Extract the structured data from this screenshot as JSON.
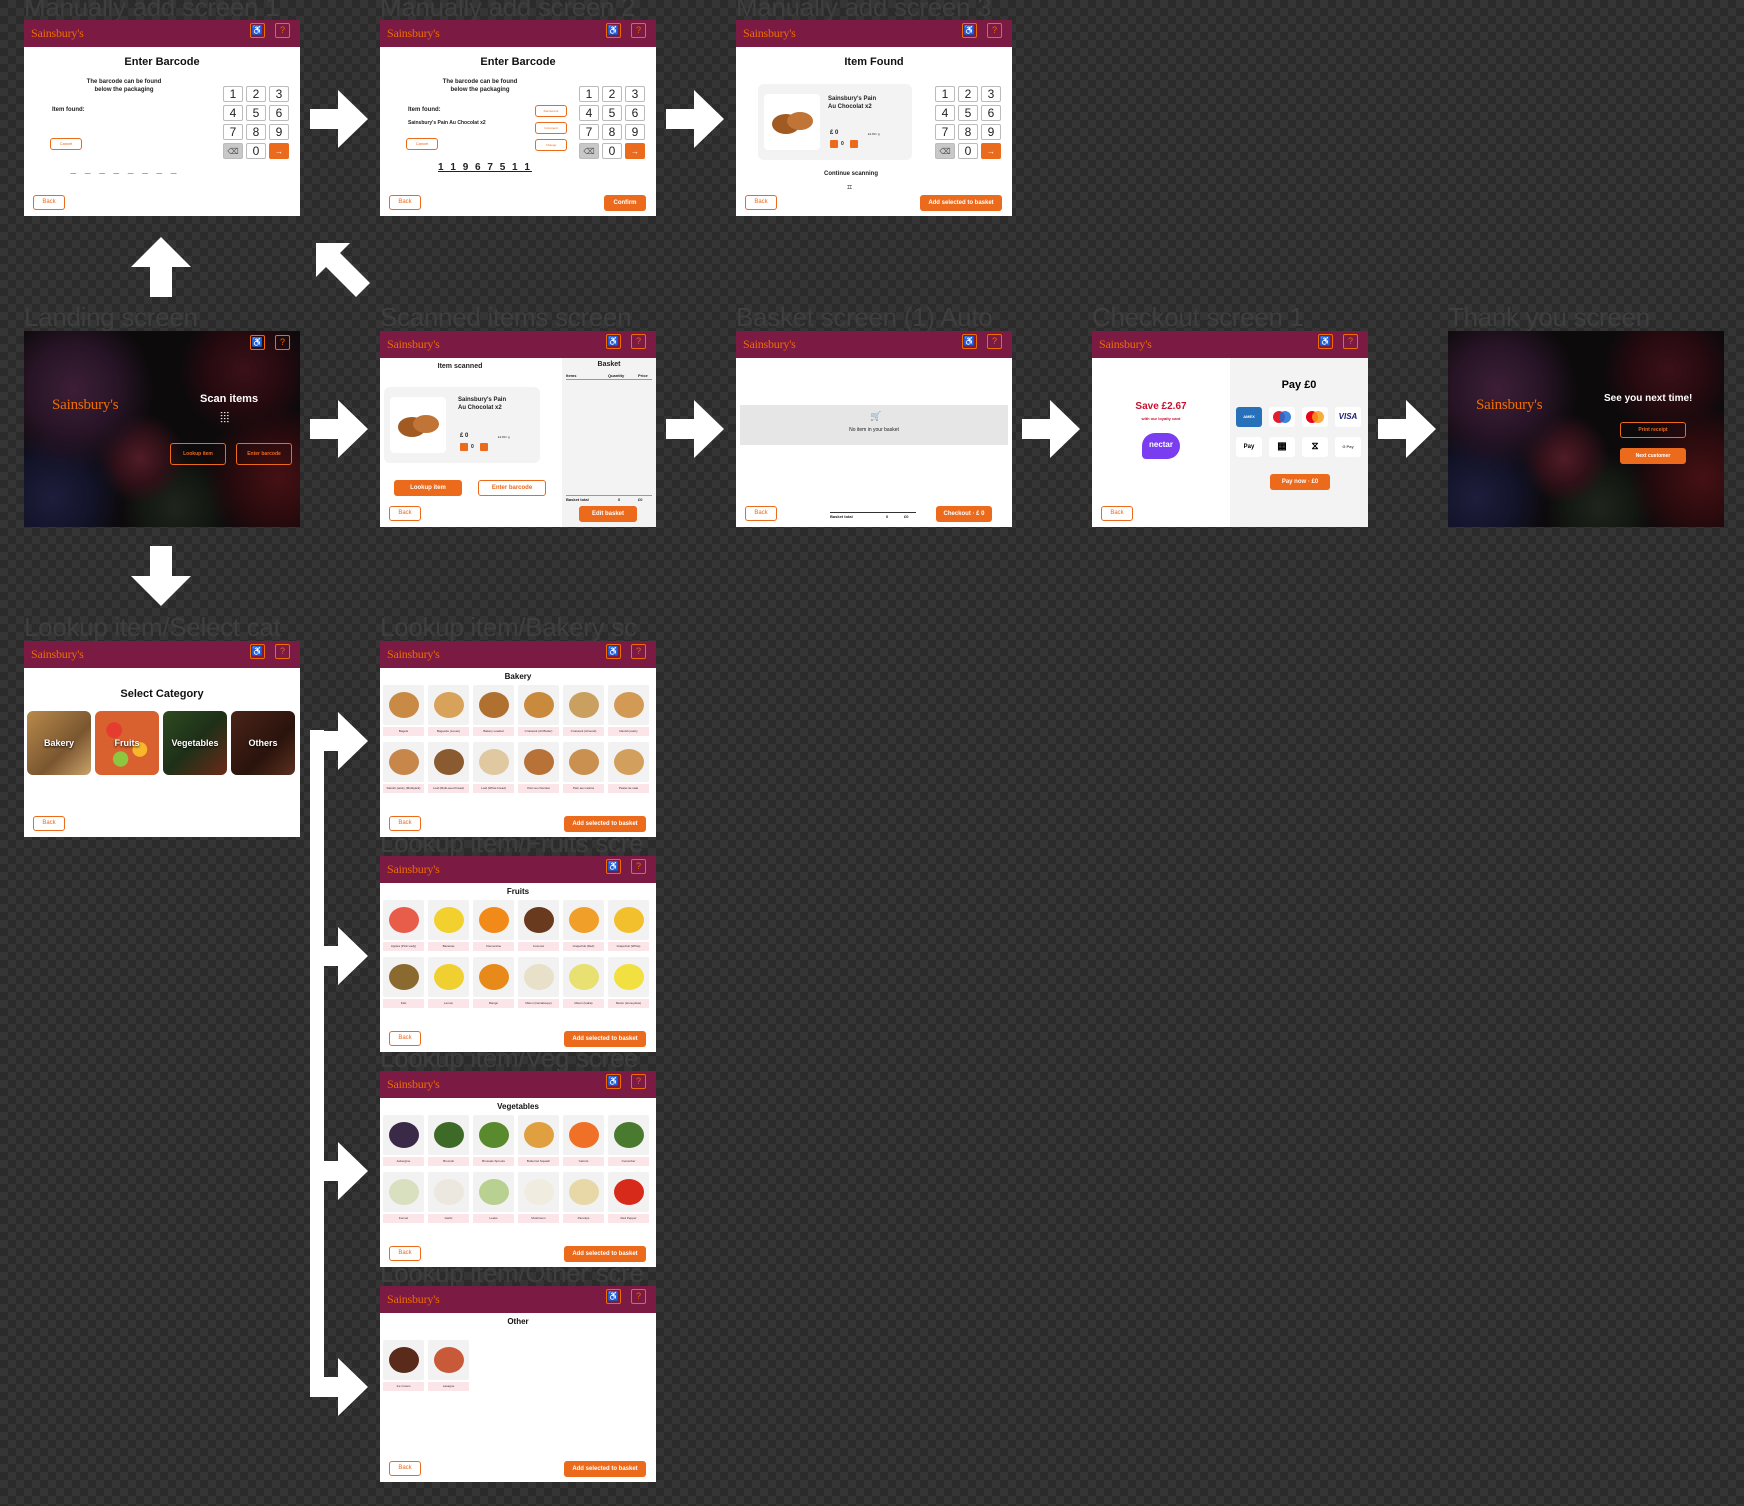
{
  "brand": {
    "logo": "Sainsbury's",
    "accessibility_label": "Accessibility",
    "support_label": "Request help",
    "accent": "#ec6a1c",
    "header_color": "#7b1a42"
  },
  "common": {
    "back": "Back",
    "add_selected": "Add selected to basket"
  },
  "titles": {
    "manual1": "Manually add screen 1",
    "manual2": "Manually add screen 2",
    "manual3": "Manually add screen 3",
    "landing": "Landing screen",
    "scanned": "Scanned items screen",
    "basket": "Basket screen (1) Auto",
    "checkout": "Checkout screen 1",
    "thankyou": "Thank you screen",
    "select_cat": "Lookup item/Select cat",
    "bakery": "Lookup item/Bakery sc",
    "fruits": "Lookup item/Fruits scre",
    "veg": "Lookup item/Veg scree",
    "other": "Lookup item/Other scre"
  },
  "manual1": {
    "title": "Enter Barcode",
    "hint1": "The barcode can be found",
    "hint2": "below the packaging",
    "found_label": "Item found:",
    "cancel": "Cancel",
    "digits": "_ _ _ _ _ _ _ _"
  },
  "manual2": {
    "title": "Enter Barcode",
    "hint1": "The barcode can be found",
    "hint2": "below the packaging",
    "found_label": "Item found:",
    "item": "Sainsbury's Pain Au Chocolat x2",
    "cancel": "Cancel",
    "side1": "Decrement",
    "side2": "Increment",
    "side3": "Change",
    "digits": "1 1 9 6 7 5 1 1",
    "confirm": "Confirm"
  },
  "manual3": {
    "title": "Item Found",
    "item1": "Sainsbury's Pain",
    "item2": "Au Chocolat x2",
    "price": "£ 0",
    "unit": "£1.80 / g",
    "qty": "0",
    "continue": "Continue scanning"
  },
  "keypad": [
    "1",
    "2",
    "3",
    "4",
    "5",
    "6",
    "7",
    "8",
    "9",
    "⌫",
    "0",
    "→"
  ],
  "landing": {
    "scan": "Scan items",
    "lookup": "Lookup item",
    "barcode": "Enter barcode"
  },
  "scanned": {
    "title": "Item scanned",
    "basket": "Basket",
    "col_items": "Items",
    "col_qty": "Quantity",
    "col_price": "Price",
    "item1": "Sainsbury's Pain",
    "item2": "Au Chocolat x2",
    "price": "£ 0",
    "unit": "£1.80 / g",
    "qty": "0",
    "lookup": "Lookup item",
    "barcode": "Enter barcode",
    "total_label": "Basket total",
    "total_qty": "0",
    "total_price": "£0",
    "edit": "Edit basket"
  },
  "basket": {
    "empty": "No item in your basket",
    "total_label": "Basket total",
    "total_qty": "0",
    "total_price": "£0",
    "checkout": "Checkout · £ 0"
  },
  "checkout": {
    "save": "Save £2.67",
    "save_sub": "with our loyalty card",
    "nectar": "nectar",
    "pay": "Pay £0",
    "pay_now": "Pay now · £0",
    "cards": [
      "AMEX",
      "",
      "",
      "VISA",
      "Pay",
      "",
      "",
      "G Pay"
    ]
  },
  "thankyou": {
    "msg": "See you next time!",
    "print": "Print receipt",
    "next": "Next customer"
  },
  "select_cat": {
    "title": "Select Category",
    "cats": [
      "Bakery",
      "Fruits",
      "Vegetables",
      "Others"
    ]
  },
  "bakery": {
    "title": "Bakery",
    "items": [
      "Bagels",
      "Baguette (Loose)",
      "Bakery Loaded",
      "Croissant (All Butter)",
      "Croissant (Almond)",
      "Danish pastry",
      "Danish pastry (Multipack)",
      "Loaf (Multi-seed bread)",
      "Loaf (White bread)",
      "Pain au chocolat",
      "Pain aux raisins",
      "Pastel de nata"
    ]
  },
  "fruits": {
    "title": "Fruits",
    "items": [
      "Apples (Pink Lady)",
      "Bananas",
      "Clementine",
      "Coconut",
      "Grapefruit (Red)",
      "Grapefruit (White)",
      "Kiwi",
      "Lemon",
      "Mango",
      "Melon (Cantaloupe)",
      "Melon (Galia)",
      "Melon (Honeydew)"
    ]
  },
  "veg": {
    "title": "Vegetables",
    "items": [
      "Aubergine",
      "Broccoli",
      "Brussels Sprouts",
      "Butternut Squash",
      "Carrots",
      "Cucumber",
      "Fennel",
      "Garlic",
      "Leeks",
      "Mushroom",
      "Parsnips",
      "Red Pepper"
    ]
  },
  "other": {
    "title": "Other",
    "items": [
      "Ice Cream",
      "Lasagne"
    ]
  }
}
